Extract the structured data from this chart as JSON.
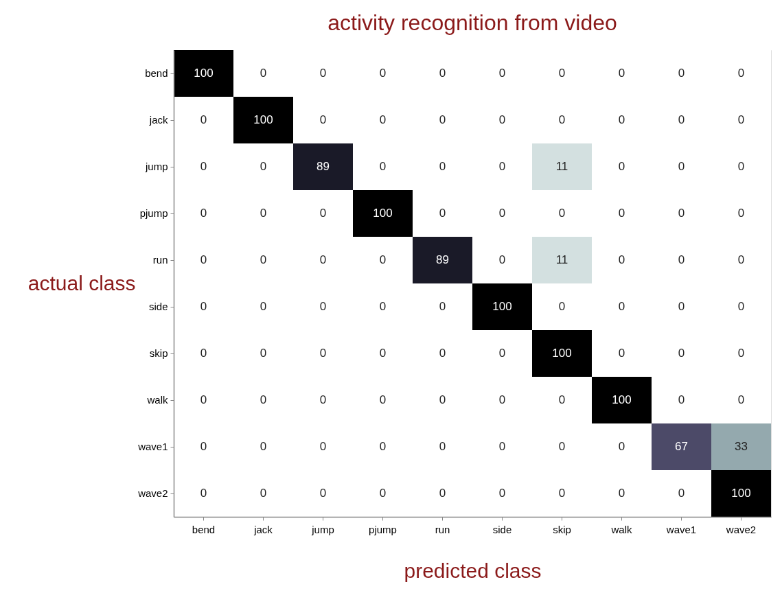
{
  "chart_data": {
    "type": "heatmap",
    "title": "activity recognition from video",
    "xlabel": "predicted class",
    "ylabel": "actual class",
    "categories": [
      "bend",
      "jack",
      "jump",
      "pjump",
      "run",
      "side",
      "skip",
      "walk",
      "wave1",
      "wave2"
    ],
    "y_categories": [
      "bend",
      "jack",
      "jump",
      "pjump",
      "run",
      "side",
      "skip",
      "walk",
      "wave1",
      "wave2"
    ],
    "cells": [
      [
        100,
        0,
        0,
        0,
        0,
        0,
        0,
        0,
        0,
        0
      ],
      [
        0,
        100,
        0,
        0,
        0,
        0,
        0,
        0,
        0,
        0
      ],
      [
        0,
        0,
        89,
        0,
        0,
        0,
        11,
        0,
        0,
        0
      ],
      [
        0,
        0,
        0,
        100,
        0,
        0,
        0,
        0,
        0,
        0
      ],
      [
        0,
        0,
        0,
        0,
        89,
        0,
        11,
        0,
        0,
        0
      ],
      [
        0,
        0,
        0,
        0,
        0,
        100,
        0,
        0,
        0,
        0
      ],
      [
        0,
        0,
        0,
        0,
        0,
        0,
        100,
        0,
        0,
        0
      ],
      [
        0,
        0,
        0,
        0,
        0,
        0,
        0,
        100,
        0,
        0
      ],
      [
        0,
        0,
        0,
        0,
        0,
        0,
        0,
        0,
        67,
        33
      ],
      [
        0,
        0,
        0,
        0,
        0,
        0,
        0,
        0,
        0,
        100
      ]
    ],
    "colors": [
      [
        "#000000",
        "#ffffff",
        "#ffffff",
        "#ffffff",
        "#ffffff",
        "#ffffff",
        "#ffffff",
        "#ffffff",
        "#ffffff",
        "#ffffff"
      ],
      [
        "#ffffff",
        "#000000",
        "#ffffff",
        "#ffffff",
        "#ffffff",
        "#ffffff",
        "#ffffff",
        "#ffffff",
        "#ffffff",
        "#ffffff"
      ],
      [
        "#ffffff",
        "#ffffff",
        "#1a1a28",
        "#ffffff",
        "#ffffff",
        "#ffffff",
        "#d3e0e0",
        "#ffffff",
        "#ffffff",
        "#ffffff"
      ],
      [
        "#ffffff",
        "#ffffff",
        "#ffffff",
        "#000000",
        "#ffffff",
        "#ffffff",
        "#ffffff",
        "#ffffff",
        "#ffffff",
        "#ffffff"
      ],
      [
        "#ffffff",
        "#ffffff",
        "#ffffff",
        "#ffffff",
        "#1a1a28",
        "#ffffff",
        "#d3e0e0",
        "#ffffff",
        "#ffffff",
        "#ffffff"
      ],
      [
        "#ffffff",
        "#ffffff",
        "#ffffff",
        "#ffffff",
        "#ffffff",
        "#000000",
        "#ffffff",
        "#ffffff",
        "#ffffff",
        "#ffffff"
      ],
      [
        "#ffffff",
        "#ffffff",
        "#ffffff",
        "#ffffff",
        "#ffffff",
        "#ffffff",
        "#000000",
        "#ffffff",
        "#ffffff",
        "#ffffff"
      ],
      [
        "#ffffff",
        "#ffffff",
        "#ffffff",
        "#ffffff",
        "#ffffff",
        "#ffffff",
        "#ffffff",
        "#000000",
        "#ffffff",
        "#ffffff"
      ],
      [
        "#ffffff",
        "#ffffff",
        "#ffffff",
        "#ffffff",
        "#ffffff",
        "#ffffff",
        "#ffffff",
        "#ffffff",
        "#4c4a68",
        "#94a9ae"
      ],
      [
        "#ffffff",
        "#ffffff",
        "#ffffff",
        "#ffffff",
        "#ffffff",
        "#ffffff",
        "#ffffff",
        "#ffffff",
        "#ffffff",
        "#000000"
      ]
    ],
    "data_labels": true
  }
}
